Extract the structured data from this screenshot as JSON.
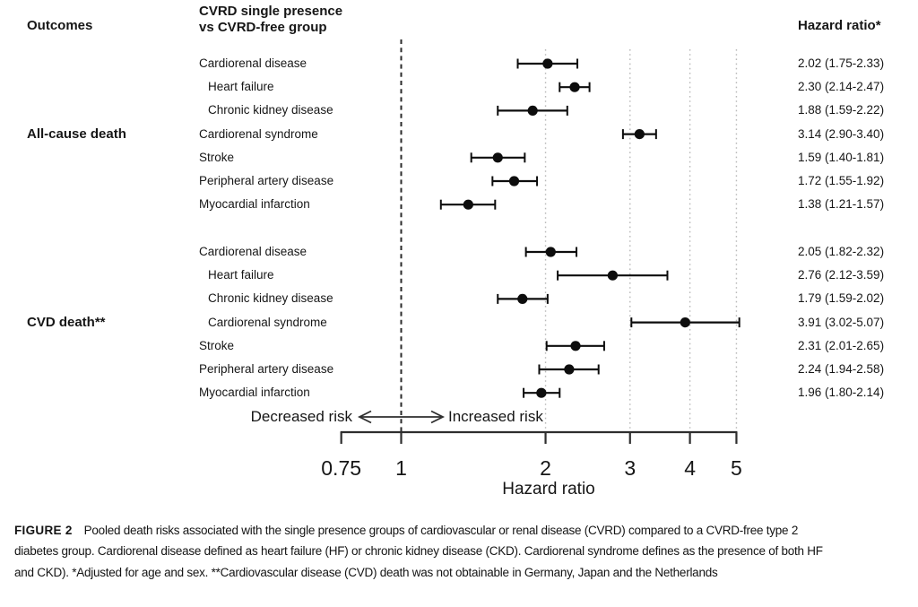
{
  "header": {
    "outcomes": "Outcomes",
    "comparison_line1": "CVRD single presence",
    "comparison_line2": "vs CVRD-free group",
    "hazard_ratio": "Hazard ratio*"
  },
  "chart_data": {
    "type": "forest",
    "x_scale": "log",
    "x_axis_label": "Hazard ratio",
    "x_ticks": [
      "0.75",
      "1",
      "2",
      "3",
      "4",
      "5"
    ],
    "x_tick_values": [
      0.75,
      1,
      2,
      3,
      4,
      5
    ],
    "xlim": [
      0.75,
      5
    ],
    "reference_line": 1,
    "gridlines": [
      2,
      3,
      4,
      5
    ],
    "decreased_label": "Decreased risk",
    "increased_label": "Increased risk",
    "groups": [
      {
        "label": "All-cause death",
        "rows": [
          {
            "label": "Cardiorenal disease",
            "indent": false,
            "hr": 2.02,
            "lo": 1.75,
            "hi": 2.33,
            "text": "2.02 (1.75-2.33)"
          },
          {
            "label": "Heart failure",
            "indent": true,
            "hr": 2.3,
            "lo": 2.14,
            "hi": 2.47,
            "text": "2.30 (2.14-2.47)"
          },
          {
            "label": "Chronic kidney disease",
            "indent": true,
            "hr": 1.88,
            "lo": 1.59,
            "hi": 2.22,
            "text": "1.88 (1.59-2.22)"
          },
          {
            "label": "Cardiorenal syndrome",
            "indent": false,
            "hr": 3.14,
            "lo": 2.9,
            "hi": 3.4,
            "text": "3.14 (2.90-3.40)"
          },
          {
            "label": "Stroke",
            "indent": false,
            "hr": 1.59,
            "lo": 1.4,
            "hi": 1.81,
            "text": "1.59 (1.40-1.81)"
          },
          {
            "label": "Peripheral artery disease",
            "indent": false,
            "hr": 1.72,
            "lo": 1.55,
            "hi": 1.92,
            "text": "1.72 (1.55-1.92)"
          },
          {
            "label": "Myocardial infarction",
            "indent": false,
            "hr": 1.38,
            "lo": 1.21,
            "hi": 1.57,
            "text": "1.38 (1.21-1.57)"
          }
        ]
      },
      {
        "label": "CVD death**",
        "rows": [
          {
            "label": "Cardiorenal disease",
            "indent": false,
            "hr": 2.05,
            "lo": 1.82,
            "hi": 2.32,
            "text": "2.05 (1.82-2.32)"
          },
          {
            "label": "Heart failure",
            "indent": true,
            "hr": 2.76,
            "lo": 2.12,
            "hi": 3.59,
            "text": "2.76 (2.12-3.59)"
          },
          {
            "label": "Chronic kidney disease",
            "indent": true,
            "hr": 1.79,
            "lo": 1.59,
            "hi": 2.02,
            "text": "1.79 (1.59-2.02)"
          },
          {
            "label": "Cardiorenal syndrome",
            "indent": true,
            "hr": 3.91,
            "lo": 3.02,
            "hi": 5.07,
            "text": "3.91 (3.02-5.07)"
          },
          {
            "label": "Stroke",
            "indent": false,
            "hr": 2.31,
            "lo": 2.01,
            "hi": 2.65,
            "text": "2.31 (2.01-2.65)"
          },
          {
            "label": "Peripheral artery disease",
            "indent": false,
            "hr": 2.24,
            "lo": 1.94,
            "hi": 2.58,
            "text": "2.24 (1.94-2.58)"
          },
          {
            "label": "Myocardial infarction",
            "indent": false,
            "hr": 1.96,
            "lo": 1.8,
            "hi": 2.14,
            "text": "1.96 (1.80-2.14)"
          }
        ]
      }
    ]
  },
  "caption": {
    "label": "FIGURE 2",
    "text": "Pooled death risks associated with the single presence groups of cardiovascular or renal disease (CVRD) compared to a CVRD-free type 2 diabetes group. Cardiorenal disease defined as heart failure (HF) or chronic kidney disease (CKD). Cardiorenal syndrome defines as the presence of both HF and CKD). *Adjusted for age and sex. **Cardiovascular disease (CVD) death was not obtainable in Germany, Japan and the Netherlands"
  },
  "colors": {
    "text": "#161616",
    "marker": "#0d0d0d",
    "gridline": "#b9b9b9",
    "refline": "#2a2a2a",
    "axis": "#2e2e2e"
  }
}
